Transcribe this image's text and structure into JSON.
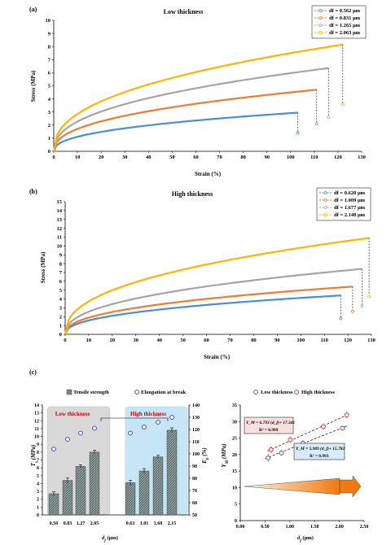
{
  "chart_data": [
    {
      "panel_label": "(a)",
      "type": "line",
      "title": "Low thickness",
      "xlabel": "Strain (%)",
      "ylabel": "Stress (MPa)",
      "xlim": [
        0,
        130
      ],
      "ylim": [
        0,
        10
      ],
      "xticks": [
        "0",
        "10",
        "20",
        "30",
        "40",
        "50",
        "60",
        "70",
        "80",
        "90",
        "100",
        "110",
        "120",
        "130"
      ],
      "yticks": [
        "0",
        "1",
        "2",
        "3",
        "4",
        "5",
        "6",
        "7",
        "8",
        "9",
        "10"
      ],
      "legend_position": "top-right",
      "series": [
        {
          "name": "df = 0.562 μm",
          "color": "#4a8fd6",
          "end_strain": 103,
          "peak_stress": 2.95,
          "break_stress": 1.4
        },
        {
          "name": "df = 0.831 μm",
          "color": "#ed7d31",
          "end_strain": 111,
          "peak_stress": 4.7,
          "break_stress": 2.1
        },
        {
          "name": "df = 1.265 μm",
          "color": "#a5a5a5",
          "end_strain": 116,
          "peak_stress": 6.35,
          "break_stress": 2.6
        },
        {
          "name": "df = 2.063 μm",
          "color": "#ffb400",
          "end_strain": 122,
          "peak_stress": 8.15,
          "break_stress": 3.6
        }
      ]
    },
    {
      "panel_label": "(b)",
      "type": "line",
      "title": "High thickness",
      "xlabel": "Strain (%)",
      "ylabel": "Stress (MPa)",
      "xlim": [
        0,
        130
      ],
      "ylim": [
        0,
        15
      ],
      "xticks": [
        "0",
        "10",
        "20",
        "30",
        "40",
        "50",
        "60",
        "70",
        "80",
        "90",
        "100",
        "110",
        "120",
        "130"
      ],
      "yticks": [
        "0",
        "1",
        "2",
        "3",
        "4",
        "5",
        "6",
        "7",
        "8",
        "9",
        "10",
        "11",
        "12",
        "13",
        "14",
        "15"
      ],
      "legend_position": "top-right",
      "series": [
        {
          "name": "df = 0.620 μm",
          "color": "#4a8fd6",
          "end_strain": 117,
          "peak_stress": 4.4,
          "break_stress": 1.8
        },
        {
          "name": "df = 1.009 μm",
          "color": "#ed7d31",
          "end_strain": 122,
          "peak_stress": 5.4,
          "break_stress": 2.6
        },
        {
          "name": "df = 1.677 μm",
          "color": "#a5a5a5",
          "end_strain": 126,
          "peak_stress": 7.4,
          "break_stress": 3.2
        },
        {
          "name": "df = 2.148 μm",
          "color": "#ffb400",
          "end_strain": 129,
          "peak_stress": 10.9,
          "break_stress": 4.3
        }
      ]
    },
    {
      "panel_label": "(c)",
      "type": "bar",
      "legend": [
        "Tensile strength",
        "Elongation at break"
      ],
      "xlabel": "d_f (μm)",
      "ylabel_left": "T_s (MPa)",
      "ylabel_right": "E_b (%)",
      "ylim_left": [
        0,
        14
      ],
      "ylim_right": [
        50,
        140
      ],
      "yticks_left": [
        "0",
        "1",
        "2",
        "3",
        "4",
        "5",
        "6",
        "7",
        "8",
        "9",
        "10",
        "11",
        "12",
        "13",
        "14"
      ],
      "yticks_right": [
        "50",
        "60",
        "70",
        "80",
        "90",
        "100",
        "110",
        "120",
        "130",
        "140"
      ],
      "groups": [
        {
          "label": "Low thickness",
          "categories": [
            "0.56",
            "0.83",
            "1.27",
            "2.05"
          ],
          "tensile_strength": [
            2.7,
            4.4,
            6.2,
            8.0
          ],
          "tensile_error": [
            0.25,
            0.3,
            0.2,
            0.25
          ],
          "elongation_at_break": [
            104,
            112,
            117,
            121
          ]
        },
        {
          "label": "High thickness",
          "categories": [
            "0.63",
            "1.01",
            "1.68",
            "2.15"
          ],
          "tensile_strength": [
            4.1,
            5.6,
            7.4,
            10.8
          ],
          "tensile_error": [
            0.3,
            0.3,
            0.2,
            0.3
          ],
          "elongation_at_break": [
            117,
            122,
            126,
            130
          ]
        }
      ]
    },
    {
      "type": "scatter",
      "legend": [
        "Low thickness",
        "High thickness"
      ],
      "xlabel": "d_f (μm)",
      "ylabel": "Y_M (MPa)",
      "xlim": [
        0.0,
        2.5
      ],
      "ylim": [
        0,
        35
      ],
      "xticks": [
        "0.00",
        "0.50",
        "1.00",
        "1.50",
        "2.00",
        "2.50"
      ],
      "yticks": [
        "0",
        "5",
        "10",
        "15",
        "20",
        "25",
        "30",
        "35"
      ],
      "series": [
        {
          "name": "Low thickness",
          "color": "#3b3bb0",
          "x": [
            0.562,
            0.831,
            1.265,
            2.063
          ],
          "y": [
            19.0,
            20.5,
            23.5,
            28.0
          ],
          "err": [
            1.2,
            0.8,
            0.8,
            0.6
          ],
          "fit_text": "Y_M = 5.989 (d_f)+ 15.782",
          "r2_text": "R² = 0.993",
          "fit": {
            "slope": 5.989,
            "intercept": 15.782
          }
        },
        {
          "name": "High thickness",
          "color": "#d62728",
          "x": [
            0.62,
            1.009,
            1.677,
            2.148
          ],
          "y": [
            21.5,
            24.5,
            28.5,
            32.0
          ],
          "err": [
            1.0,
            1.0,
            1.0,
            1.0
          ],
          "fit_text": "Y_M = 6.793 (d_f)+ 17.341",
          "r2_text": "R² = 0.999",
          "fit": {
            "slope": 6.793,
            "intercept": 17.341
          }
        }
      ]
    }
  ]
}
